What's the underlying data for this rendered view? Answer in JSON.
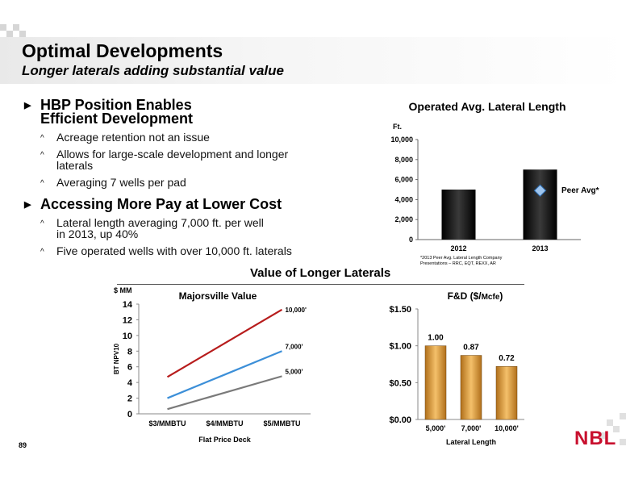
{
  "header": {
    "title": "Optimal Developments",
    "subtitle": "Longer laterals adding substantial value"
  },
  "bullets": [
    {
      "text": "HBP Position Enables Efficient Development",
      "lines": [
        "HBP Position Enables",
        "Efficient Development"
      ],
      "subs": [
        {
          "lines": [
            "Acreage retention not an issue"
          ]
        },
        {
          "lines": [
            "Allows for large-scale development and longer",
            "laterals"
          ]
        },
        {
          "lines": [
            "Averaging 7 wells per pad"
          ]
        }
      ]
    },
    {
      "text": "Accessing More Pay at Lower Cost",
      "lines": [
        "Accessing More Pay at Lower Cost"
      ],
      "subs": [
        {
          "lines": [
            "Lateral length averaging 7,000 ft. per well",
            "in 2013, up 40%"
          ]
        },
        {
          "lines": [
            "Five operated wells with over 10,000 ft. laterals"
          ]
        }
      ]
    }
  ],
  "section_title": "Value of Longer Laterals",
  "page_number": "89",
  "logo_text": "NBL",
  "colors": {
    "bar_dark": "#1a1a1a",
    "bar_gold": "#e8a33c",
    "line_red": "#b71c1c",
    "line_blue": "#3c8fd8",
    "line_gray": "#7a7a7a",
    "marker_blue": "#9ec5ee",
    "logo_red": "#c8102e"
  },
  "chart_data": [
    {
      "type": "bar",
      "title": "Operated Avg. Lateral Length",
      "ylabel": "Ft.",
      "categories": [
        "2012",
        "2013"
      ],
      "values": [
        5000,
        7000
      ],
      "ylim": [
        0,
        10000
      ],
      "yticks": [
        0,
        2000,
        4000,
        6000,
        8000,
        10000
      ],
      "ytick_labels": [
        "0",
        "2,000",
        "4,000",
        "6,000",
        "8,000",
        "10,000"
      ],
      "marker": {
        "label": "Peer Avg*",
        "category": "2013",
        "value": 4900
      },
      "footnote": [
        "*2013 Peer Avg. Lateral Length Company",
        "Presentations – RRC, EQT, REXX, AR"
      ],
      "legend": "none"
    },
    {
      "type": "line",
      "title": "Majorsville Value",
      "ylabel": "BT NPV10",
      "yunit": "$ MM",
      "xlabel": "Flat  Price Deck",
      "categories": [
        "$3/MMBTU",
        "$4/MMBTU",
        "$5/MMBTU"
      ],
      "ylim": [
        0,
        14
      ],
      "yticks": [
        0,
        2,
        4,
        6,
        8,
        10,
        12,
        14
      ],
      "series": [
        {
          "name": "10,000'",
          "values": [
            4.7,
            9.0,
            13.3
          ]
        },
        {
          "name": "7,000'",
          "values": [
            2.0,
            5.0,
            8.0
          ]
        },
        {
          "name": "5,000'",
          "values": [
            0.6,
            2.7,
            4.8
          ]
        }
      ]
    },
    {
      "type": "bar",
      "title": "F&D ($/Mcfe)",
      "title_main": "F&D ($/",
      "title_small": "Mcfe",
      "title_end": ")",
      "xlabel": "Lateral Length",
      "categories": [
        "5,000'",
        "7,000'",
        "10,000'"
      ],
      "values": [
        1.0,
        0.87,
        0.72
      ],
      "value_labels": [
        "1.00",
        "0.87",
        "0.72"
      ],
      "ylim": [
        0,
        1.5
      ],
      "yticks": [
        0,
        0.5,
        1.0,
        1.5
      ],
      "ytick_labels": [
        "$0.00",
        "$0.50",
        "$1.00",
        "$1.50"
      ]
    }
  ]
}
